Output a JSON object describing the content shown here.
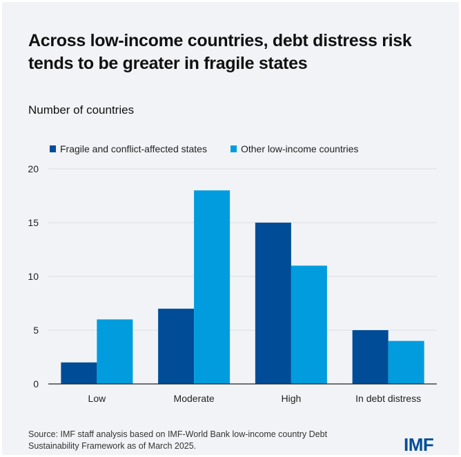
{
  "title": "Across low-income countries, debt distress risk tends to be greater in fragile states",
  "source": "Source: IMF staff analysis based on IMF-World Bank low-income country Debt Sustainability Framework as of March 2025.",
  "logo": "IMF",
  "colors": {
    "fragile": "#004c97",
    "other": "#009cde",
    "grid": "#d9dce1"
  },
  "chart_data": {
    "type": "bar",
    "title": "Across low-income countries, debt distress risk tends to be greater in fragile states",
    "ylabel": "Number of countries",
    "xlabel": "",
    "categories": [
      "Low",
      "Moderate",
      "High",
      "In debt distress"
    ],
    "series": [
      {
        "name": "Fragile and conflict-affected states",
        "values": [
          2,
          7,
          15,
          5
        ]
      },
      {
        "name": "Other low-income countries",
        "values": [
          6,
          18,
          11,
          4
        ]
      }
    ],
    "ylim": [
      0,
      20
    ],
    "yticks": [
      "0",
      "5",
      "10",
      "15",
      "20"
    ],
    "grid": true,
    "legend": "top-left"
  }
}
